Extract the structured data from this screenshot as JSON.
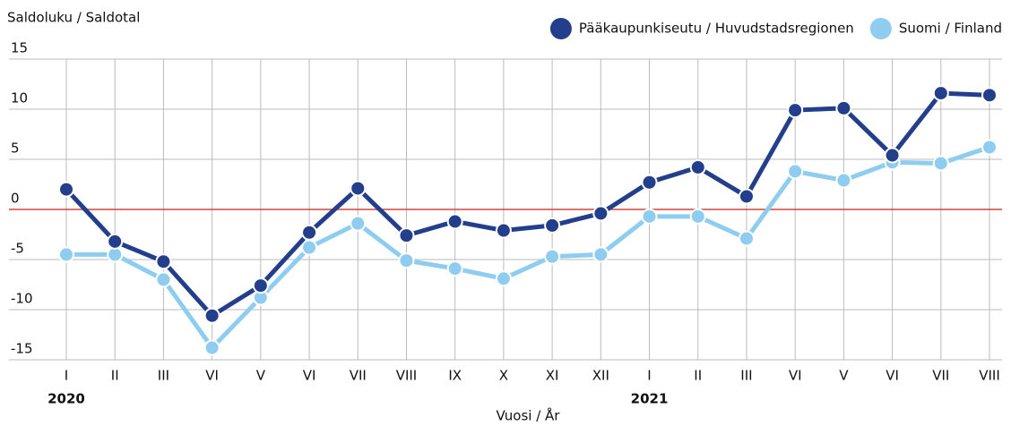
{
  "chart_data": {
    "type": "line",
    "y_label": "Saldoluku / Saldotal",
    "x_label": "Vuosi / År",
    "categories": [
      "I",
      "II",
      "III",
      "VI",
      "V",
      "VI",
      "VII",
      "VIII",
      "IX",
      "X",
      "XI",
      "XII",
      "I",
      "II",
      "III",
      "VI",
      "V",
      "VI",
      "VII",
      "VIII"
    ],
    "years": [
      "2020",
      null,
      null,
      null,
      null,
      null,
      null,
      null,
      null,
      null,
      null,
      null,
      "2021",
      null,
      null,
      null,
      null,
      null,
      null,
      null
    ],
    "series": [
      {
        "name": "Pääkaupunkiseutu / Huvudstadsregionen",
        "color": "#233e8b",
        "values": [
          2.0,
          -3.2,
          -5.2,
          -10.6,
          -7.6,
          -2.3,
          2.1,
          -2.6,
          -1.2,
          -2.1,
          -1.6,
          -0.4,
          2.7,
          4.2,
          1.3,
          9.9,
          10.1,
          5.4,
          11.6,
          11.4
        ]
      },
      {
        "name": "Suomi / Finland",
        "color": "#8ecdf0",
        "values": [
          -4.5,
          -4.5,
          -7.0,
          -13.8,
          -8.8,
          -3.8,
          -1.4,
          -5.1,
          -5.9,
          -6.9,
          -4.7,
          -4.5,
          -0.7,
          -0.7,
          -2.9,
          3.8,
          2.9,
          4.7,
          4.6,
          6.2
        ]
      }
    ],
    "ylim": [
      -15,
      15
    ],
    "yticks": [
      15,
      10,
      5,
      0,
      -5,
      -10,
      -15
    ],
    "grid": true,
    "zero_line_color": "#d0473a",
    "legend": "top-right"
  }
}
